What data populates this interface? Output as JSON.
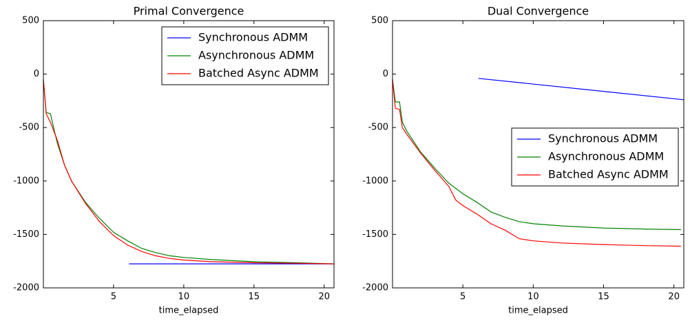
{
  "chart_data": [
    {
      "type": "line",
      "title": "Primal Convergence",
      "x_label": "time_elapsed",
      "xlim": [
        0,
        20.7
      ],
      "ylim": [
        -2000,
        500
      ],
      "xticks": [
        5,
        10,
        15,
        20
      ],
      "yticks": [
        -2000,
        -1500,
        -1000,
        -500,
        0,
        500
      ],
      "legend": "upper right",
      "series": [
        {
          "name": "Synchronous ADMM",
          "color": "#0000ff",
          "x": [
            6.1,
            20.7
          ],
          "values": [
            -1775,
            -1775
          ]
        },
        {
          "name": "Asynchronous ADMM",
          "color": "#008000",
          "x": [
            0,
            0.2,
            0.5,
            1,
            1.5,
            2,
            3,
            4,
            5,
            6,
            7,
            8,
            9,
            10,
            12,
            15,
            18,
            20.7
          ],
          "values": [
            -50,
            -360,
            -370,
            -650,
            -850,
            -1000,
            -1200,
            -1350,
            -1480,
            -1560,
            -1630,
            -1670,
            -1700,
            -1715,
            -1735,
            -1755,
            -1765,
            -1775
          ]
        },
        {
          "name": "Batched Async ADMM",
          "color": "#ff0000",
          "x": [
            0,
            0.2,
            0.5,
            1,
            1.5,
            2,
            3,
            4,
            5,
            6,
            7,
            8,
            9,
            10,
            12,
            15,
            18,
            20.7
          ],
          "values": [
            -50,
            -370,
            -450,
            -620,
            -850,
            -1000,
            -1210,
            -1380,
            -1510,
            -1600,
            -1660,
            -1700,
            -1725,
            -1740,
            -1755,
            -1765,
            -1770,
            -1775
          ]
        }
      ]
    },
    {
      "type": "line",
      "title": "Dual Convergence",
      "x_label": "time_elapsed",
      "xlim": [
        0,
        20.7
      ],
      "ylim": [
        -2000,
        500
      ],
      "xticks": [
        5,
        10,
        15,
        20
      ],
      "yticks": [
        -2000,
        -1500,
        -1000,
        -500,
        0,
        500
      ],
      "legend": "center right",
      "series": [
        {
          "name": "Synchronous ADMM",
          "color": "#0000ff",
          "x": [
            6.1,
            20.7
          ],
          "values": [
            -40,
            -240
          ]
        },
        {
          "name": "Asynchronous ADMM",
          "color": "#008000",
          "x": [
            0,
            0.2,
            0.5,
            0.7,
            1,
            1.5,
            2,
            3,
            4,
            5,
            6,
            7,
            8,
            9,
            10,
            12,
            15,
            18,
            20.5
          ],
          "values": [
            -50,
            -260,
            -260,
            -450,
            -530,
            -630,
            -730,
            -880,
            -1020,
            -1120,
            -1200,
            -1290,
            -1340,
            -1380,
            -1400,
            -1420,
            -1440,
            -1450,
            -1455
          ]
        },
        {
          "name": "Batched Async ADMM",
          "color": "#ff0000",
          "x": [
            0,
            0.2,
            0.5,
            0.7,
            1,
            1.5,
            2,
            3,
            4,
            4.5,
            5,
            6,
            7,
            8,
            9,
            10,
            12,
            15,
            18,
            20.5
          ],
          "values": [
            -50,
            -320,
            -330,
            -500,
            -560,
            -650,
            -740,
            -900,
            -1050,
            -1180,
            -1230,
            -1310,
            -1400,
            -1460,
            -1540,
            -1560,
            -1580,
            -1595,
            -1605,
            -1610
          ]
        }
      ]
    }
  ]
}
